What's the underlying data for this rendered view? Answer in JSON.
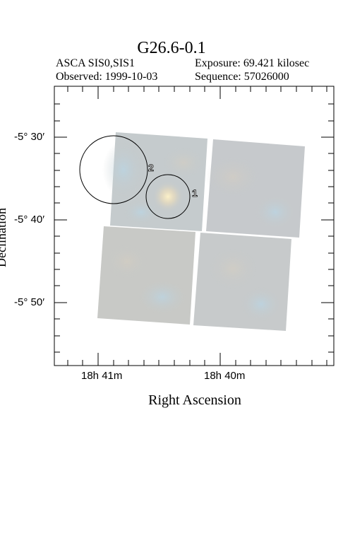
{
  "title": "G26.6-0.1",
  "header": {
    "instrument": "ASCA SIS0,SIS1",
    "exposure": "Exposure: 69.421 kilosec",
    "observed": "Observed: 1999-10-03",
    "sequence": "Sequence: 57026000"
  },
  "axes": {
    "xlabel": "Right Ascension",
    "ylabel": "Declination",
    "y_ticks": [
      "-5° 30′",
      "-5° 40′",
      "-5° 50′"
    ],
    "x_ticks": [
      "18h 41m",
      "18h 40m"
    ]
  },
  "regions": [
    {
      "label": "1",
      "shape": "circle"
    },
    {
      "label": "2",
      "shape": "circle"
    }
  ],
  "colors": {
    "tile": "#c6cac9",
    "bright_source": "#ffe9b0",
    "frame": "#000000"
  }
}
